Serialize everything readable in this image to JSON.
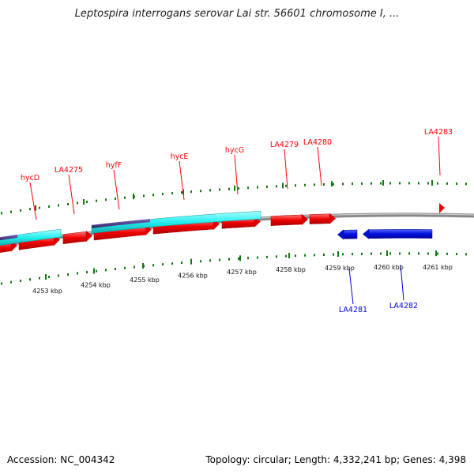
{
  "title": "Leptospira interrogans serovar Lai str. 56601 chromosome I, ...",
  "footer": {
    "accession": "Accession: NC_004342",
    "summary": "Topology: circular; Length: 4,332,241 bp; Genes: 4,398"
  },
  "colors": {
    "forward_gene": "#ff0000",
    "reverse_gene": "#0000dd",
    "feature_cyan": "#33eeee",
    "feature_purple": "#443388",
    "backbone": "#888888",
    "tick": "#117711"
  },
  "scale_labels": [
    "4253 kbp",
    "4254 kbp",
    "4255 kbp",
    "4256 kbp",
    "4257 kbp",
    "4258 kbp",
    "4259 kbp",
    "4260 kbp",
    "4261 kbp"
  ],
  "forward_gene_labels": [
    "hycD",
    "LA4275",
    "hyfF",
    "hycE",
    "hycG",
    "LA4279",
    "LA4280",
    "LA4283"
  ],
  "reverse_gene_labels": [
    "LA4281",
    "LA4282"
  ]
}
